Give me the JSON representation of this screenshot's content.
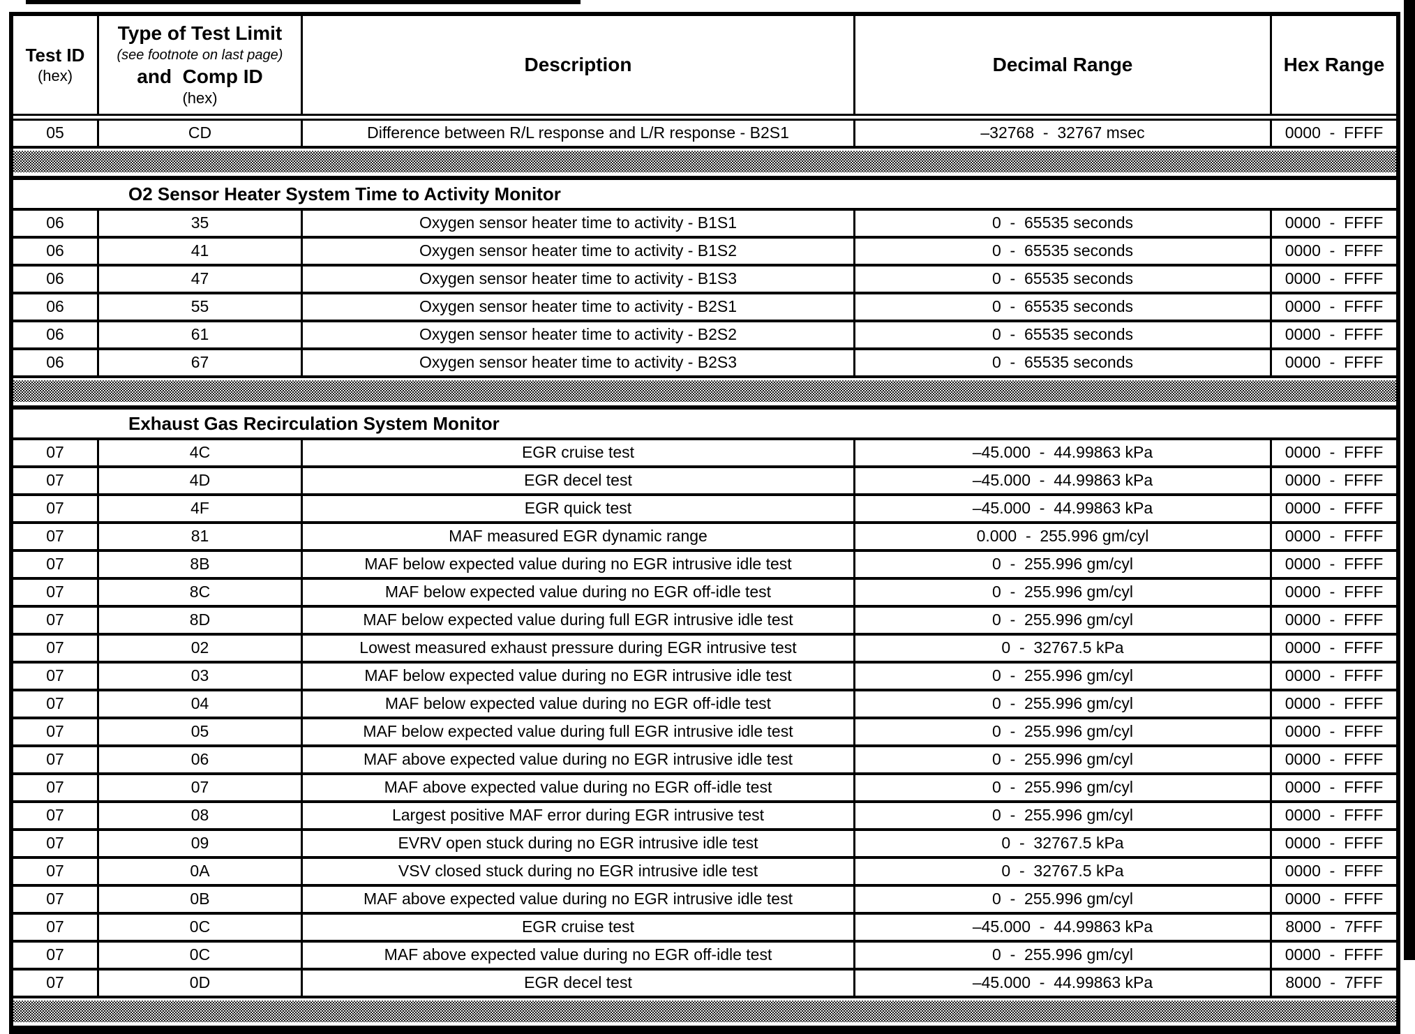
{
  "page": {
    "background": "#ffffff",
    "ink": "#000000"
  },
  "table": {
    "header": {
      "test_id_title": "Test ID",
      "test_id_sub": "(hex)",
      "limit_title": "Type of Test Limit",
      "limit_note": "(see footnote on last page)",
      "limit_title2": "and  Comp ID",
      "limit_sub": "(hex)",
      "description": "Description",
      "decimal_range": "Decimal Range",
      "hex_range": "Hex Range"
    },
    "sections": [
      {
        "kind": "rows",
        "rows": [
          {
            "test_id": "05",
            "comp_id": "CD",
            "description": "Difference between R/L response and L/R response - B2S1",
            "decimal_range": "–32768  -  32767 msec",
            "hex_range": "0000  -  FFFF"
          }
        ]
      },
      {
        "kind": "separator"
      },
      {
        "kind": "title",
        "title": "O2 Sensor Heater System Time to Activity Monitor"
      },
      {
        "kind": "rows",
        "rows": [
          {
            "test_id": "06",
            "comp_id": "35",
            "description": "Oxygen sensor heater time to activity - B1S1",
            "decimal_range": "0  -  65535 seconds",
            "hex_range": "0000  -  FFFF"
          },
          {
            "test_id": "06",
            "comp_id": "41",
            "description": "Oxygen sensor heater time to activity - B1S2",
            "decimal_range": "0  -  65535 seconds",
            "hex_range": "0000  -  FFFF"
          },
          {
            "test_id": "06",
            "comp_id": "47",
            "description": "Oxygen sensor heater time to activity - B1S3",
            "decimal_range": "0  -  65535 seconds",
            "hex_range": "0000  -  FFFF"
          },
          {
            "test_id": "06",
            "comp_id": "55",
            "description": "Oxygen sensor heater time to activity - B2S1",
            "decimal_range": "0  -  65535 seconds",
            "hex_range": "0000  -  FFFF"
          },
          {
            "test_id": "06",
            "comp_id": "61",
            "description": "Oxygen sensor heater time to activity - B2S2",
            "decimal_range": "0  -  65535 seconds",
            "hex_range": "0000  -  FFFF"
          },
          {
            "test_id": "06",
            "comp_id": "67",
            "description": "Oxygen sensor heater time to activity - B2S3",
            "decimal_range": "0  -  65535 seconds",
            "hex_range": "0000  -  FFFF"
          }
        ]
      },
      {
        "kind": "separator"
      },
      {
        "kind": "title",
        "title": "Exhaust Gas Recirculation System Monitor"
      },
      {
        "kind": "rows",
        "rows": [
          {
            "test_id": "07",
            "comp_id": "4C",
            "description": "EGR cruise test",
            "decimal_range": "–45.000  -  44.99863 kPa",
            "hex_range": "0000  -  FFFF"
          },
          {
            "test_id": "07",
            "comp_id": "4D",
            "description": "EGR decel test",
            "decimal_range": "–45.000  -  44.99863 kPa",
            "hex_range": "0000  -  FFFF"
          },
          {
            "test_id": "07",
            "comp_id": "4F",
            "description": "EGR quick test",
            "decimal_range": "–45.000  -  44.99863 kPa",
            "hex_range": "0000  -  FFFF"
          },
          {
            "test_id": "07",
            "comp_id": "81",
            "description": "MAF measured EGR dynamic range",
            "decimal_range": "0.000  -  255.996 gm/cyl",
            "hex_range": "0000  -  FFFF"
          },
          {
            "test_id": "07",
            "comp_id": "8B",
            "description": "MAF below expected value during no EGR intrusive idle test",
            "decimal_range": "0  -  255.996 gm/cyl",
            "hex_range": "0000  -  FFFF"
          },
          {
            "test_id": "07",
            "comp_id": "8C",
            "description": "MAF below expected value during no EGR off-idle test",
            "decimal_range": "0  -  255.996 gm/cyl",
            "hex_range": "0000  -  FFFF"
          },
          {
            "test_id": "07",
            "comp_id": "8D",
            "description": "MAF below expected value during full EGR intrusive idle test",
            "decimal_range": "0  -  255.996 gm/cyl",
            "hex_range": "0000  -  FFFF"
          },
          {
            "test_id": "07",
            "comp_id": "02",
            "description": "Lowest measured exhaust pressure during EGR intrusive test",
            "decimal_range": "0  -  32767.5 kPa",
            "hex_range": "0000  -  FFFF"
          },
          {
            "test_id": "07",
            "comp_id": "03",
            "description": "MAF below expected value during no EGR intrusive idle test",
            "decimal_range": "0  -  255.996 gm/cyl",
            "hex_range": "0000  -  FFFF"
          },
          {
            "test_id": "07",
            "comp_id": "04",
            "description": "MAF below expected value during no EGR off-idle test",
            "decimal_range": "0  -  255.996 gm/cyl",
            "hex_range": "0000  -  FFFF"
          },
          {
            "test_id": "07",
            "comp_id": "05",
            "description": "MAF below expected value during full EGR intrusive idle test",
            "decimal_range": "0  -  255.996 gm/cyl",
            "hex_range": "0000  -  FFFF"
          },
          {
            "test_id": "07",
            "comp_id": "06",
            "description": "MAF above expected value during no EGR intrusive idle test",
            "decimal_range": "0  -  255.996 gm/cyl",
            "hex_range": "0000  -  FFFF"
          },
          {
            "test_id": "07",
            "comp_id": "07",
            "description": "MAF above expected value during no EGR off-idle test",
            "decimal_range": "0  -  255.996 gm/cyl",
            "hex_range": "0000  -  FFFF"
          },
          {
            "test_id": "07",
            "comp_id": "08",
            "description": "Largest positive MAF error during EGR intrusive test",
            "decimal_range": "0  -  255.996 gm/cyl",
            "hex_range": "0000  -  FFFF"
          },
          {
            "test_id": "07",
            "comp_id": "09",
            "description": "EVRV open stuck during no EGR intrusive idle test",
            "decimal_range": "0  -  32767.5 kPa",
            "hex_range": "0000  -  FFFF"
          },
          {
            "test_id": "07",
            "comp_id": "0A",
            "description": "VSV closed stuck during no EGR intrusive idle test",
            "decimal_range": "0  -  32767.5 kPa",
            "hex_range": "0000  -  FFFF"
          },
          {
            "test_id": "07",
            "comp_id": "0B",
            "description": "MAF above expected value during no EGR intrusive idle test",
            "decimal_range": "0  -  255.996 gm/cyl",
            "hex_range": "0000  -  FFFF"
          },
          {
            "test_id": "07",
            "comp_id": "0C",
            "description": "EGR cruise test",
            "decimal_range": "–45.000  -  44.99863 kPa",
            "hex_range": "8000  -  7FFF"
          },
          {
            "test_id": "07",
            "comp_id": "0C",
            "description": "MAF above expected value during no EGR off-idle test",
            "decimal_range": "0  -  255.996 gm/cyl",
            "hex_range": "0000  -  FFFF"
          },
          {
            "test_id": "07",
            "comp_id": "0D",
            "description": "EGR decel test",
            "decimal_range": "–45.000  -  44.99863 kPa",
            "hex_range": "8000  -  7FFF"
          }
        ]
      },
      {
        "kind": "separator"
      }
    ]
  }
}
